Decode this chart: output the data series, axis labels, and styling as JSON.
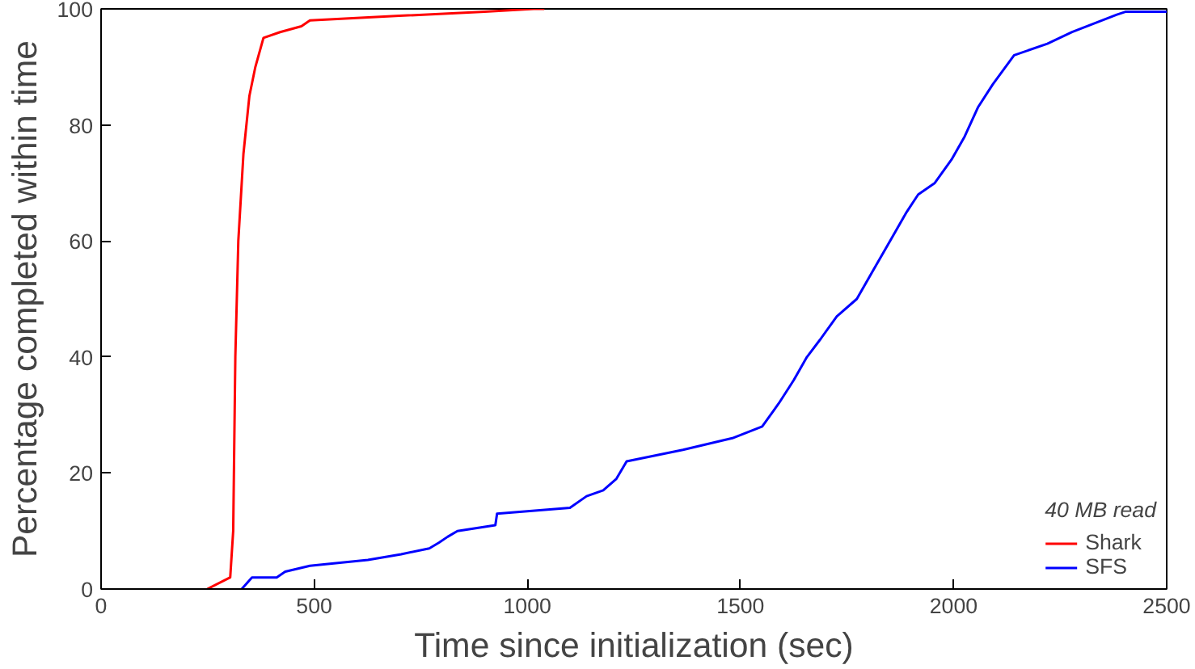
{
  "chart_data": {
    "type": "line",
    "xlabel": "Time since initialization (sec)",
    "ylabel": "Percentage completed within time",
    "legend_title": "40 MB read",
    "legend": "bottom right",
    "grid": false,
    "marker": "none",
    "line_style": "solid",
    "xlim": [
      0,
      2500
    ],
    "ylim": [
      0,
      100
    ],
    "xticks": [
      0,
      500,
      1000,
      1500,
      2000,
      2500
    ],
    "yticks": [
      0,
      20,
      40,
      60,
      80,
      100
    ],
    "series": [
      {
        "name": "Shark",
        "color": "#ff0000",
        "x": [
          249,
          303,
          310,
          315,
          322,
          334,
          348,
          362,
          381,
          420,
          470,
          490,
          700,
          900,
          1015,
          1040
        ],
        "values": [
          0,
          2,
          10,
          40,
          60,
          75,
          85,
          90,
          95,
          96,
          97,
          98,
          98.8,
          99.5,
          100,
          100
        ]
      },
      {
        "name": "SFS",
        "color": "#0000ff",
        "x": [
          330,
          354,
          412,
          432,
          490,
          626,
          704,
          770,
          793,
          813,
          836,
          925,
          929,
          1100,
          1139,
          1178,
          1209,
          1233,
          1365,
          1481,
          1551,
          1590,
          1625,
          1656,
          1687,
          1726,
          1773,
          1812,
          1851,
          1890,
          1917,
          1956,
          1995,
          2026,
          2057,
          2092,
          2142,
          2220,
          2278,
          2383,
          2403,
          2500
        ],
        "values": [
          0,
          2,
          2,
          3,
          4,
          5,
          6,
          7,
          8,
          9,
          10,
          11,
          13,
          14,
          16,
          17,
          19,
          22,
          24,
          26,
          28,
          32,
          36,
          40,
          43,
          47,
          50,
          55,
          60,
          65,
          68,
          70,
          74,
          78,
          83,
          87,
          92,
          94,
          96,
          99,
          99.5,
          99.5
        ]
      }
    ]
  }
}
